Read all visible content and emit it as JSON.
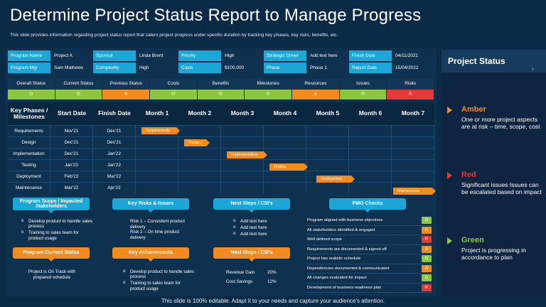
{
  "title": "Determine Project Status Report to Manage Progress",
  "subtitle": "This slide provides information regarding project status report that caters project progress under specific duration by tracking key phases, key risks, benefits, etc.",
  "footer": "This slide is 100% editable. Adapt it to your needs and capture your audience's attention.",
  "info": [
    [
      {
        "label": "Program Name",
        "value": "Project A"
      },
      {
        "label": "Sponsor",
        "value": "Linda Brent"
      },
      {
        "label": "Priority",
        "value": "High"
      },
      {
        "label": "Strategic Driver",
        "value": "Add text here"
      },
      {
        "label": "Finish Date",
        "value": "04/11/2021"
      }
    ],
    [
      {
        "label": "Program Mgr",
        "value": "Sam Mathews"
      },
      {
        "label": "Complexity",
        "value": "High"
      },
      {
        "label": "Costs",
        "value": "$100,000"
      },
      {
        "label": "Phase",
        "value": "Phase 1"
      },
      {
        "label": "Report Date",
        "value": "15/04/2022"
      }
    ]
  ],
  "status": {
    "headers": [
      "Overall Status",
      "Current Status",
      "Previous Status",
      "Costs",
      "Benefits",
      "Milestones",
      "Resources",
      "Issues",
      "Risks"
    ],
    "values": [
      "G",
      "G",
      "A",
      "G",
      "G",
      "G",
      "A",
      "G",
      "R"
    ]
  },
  "colors": {
    "G": "#8cc63f",
    "A": "#f28c1e",
    "R": "#e53935",
    "blue": "#1ea7d6",
    "orange": "#f28c1e"
  },
  "gantt": {
    "headers": [
      "Key Phases / Milestones",
      "Start Date",
      "Finish Date",
      "Month 1",
      "Month 2",
      "Month 3",
      "Month 4",
      "Month 5",
      "Month 6",
      "Month 7"
    ],
    "rows": [
      {
        "phase": "Requirements",
        "start": "Nov'21",
        "finish": "Dec'21",
        "bar": "Requirements",
        "from_month": 1.0,
        "to_month": 1.9
      },
      {
        "phase": "Design",
        "start": "Dec'21",
        "finish": "Dec'21",
        "bar": "Design",
        "from_month": 2.0,
        "to_month": 2.6
      },
      {
        "phase": "Implementation",
        "start": "Dec'21",
        "finish": "Jan'22",
        "bar": "Implementation",
        "from_month": 3.0,
        "to_month": 3.95
      },
      {
        "phase": "Testing",
        "start": "Jan'22",
        "finish": "Jan'22",
        "bar": "Testing",
        "from_month": 4.0,
        "to_month": 4.9
      },
      {
        "phase": "Deployment",
        "start": "Feb'22",
        "finish": "Mar'22",
        "bar": "Deployment",
        "from_month": 5.1,
        "to_month": 6.0
      },
      {
        "phase": "Maintenance",
        "start": "Mar'22",
        "finish": "Apr'22",
        "bar": "Maintenance",
        "from_month": 6.9,
        "to_month": 7.9
      }
    ]
  },
  "panels": {
    "scope_title": "Program Scope / Impacted Stakeholders",
    "scope_items": [
      "Develop product to handle sales process",
      "Training to sales team for product usage"
    ],
    "risks_title": "Key Risks & Issues",
    "risks_items": [
      "Risk 1 – Consistent product delivery",
      "Risk 2 – On time product delivery"
    ],
    "next_title": "Next Steps / CSI's",
    "next_items": [
      "Add text here",
      "Add text here",
      "Add text here"
    ],
    "current_title": "Program Current Status",
    "current_text": "Project is On Track with prepared schedule",
    "achieve_title": "Key Achievements",
    "achieve_items": [
      "Develop product to handle sales process",
      "Training to sales team for product usage"
    ],
    "next2_title": "Next Steps / CSI's",
    "next2_rows": [
      {
        "label": "Revenue Gain",
        "value": "20%"
      },
      {
        "label": "Cost Savings",
        "value": "12%"
      }
    ],
    "pmo_title": "PMO Checks",
    "pmo_rows": [
      {
        "label": "Program aligned with business objectives",
        "status": "G"
      },
      {
        "label": "All stakeholders identified & engaged",
        "status": "A"
      },
      {
        "label": "Well defined scope",
        "status": "R"
      },
      {
        "label": "Requirements are documented & signed off",
        "status": "A"
      },
      {
        "label": "Project has realistic schedule",
        "status": "G"
      },
      {
        "label": "Dependencies documented & communicated",
        "status": "A"
      },
      {
        "label": "All changes evaluated for impact",
        "status": "G"
      },
      {
        "label": "Development of business readiness plan",
        "status": "R"
      }
    ]
  },
  "side": {
    "title": "Project Status",
    "items": [
      {
        "name": "Amber",
        "desc": "One or more project aspects are at risk – time, scope, cost",
        "color": "#f28c1e"
      },
      {
        "name": "Red",
        "desc": "Significant issues Issues can be escalated based on impact",
        "color": "#e53935"
      },
      {
        "name": "Green",
        "desc": "Project is progressing in accordance to plan",
        "color": "#8cc63f"
      }
    ]
  }
}
